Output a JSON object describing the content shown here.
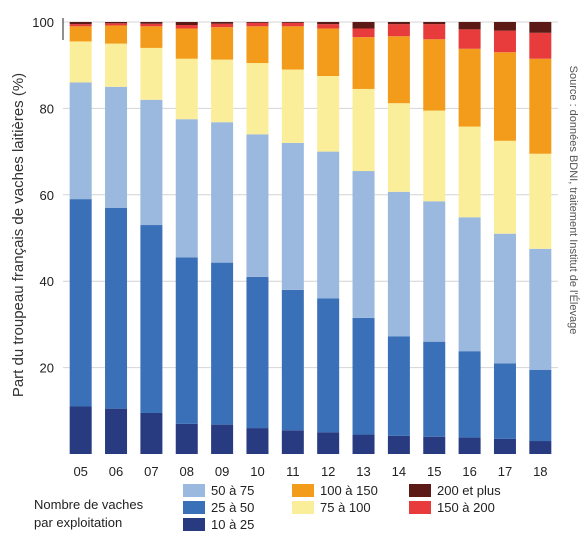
{
  "chart_data": {
    "type": "bar",
    "stacked": true,
    "ylabel": "Part du troupeau français de vaches laitières (%)",
    "source": "Source : données BDNI, traitement Institut de l'Élevage",
    "ylim": [
      0,
      100
    ],
    "yticks": [
      "100",
      "80",
      "60",
      "40",
      "20"
    ],
    "categories": [
      "05",
      "06",
      "07",
      "08",
      "09",
      "10",
      "11",
      "12",
      "13",
      "14",
      "15",
      "16",
      "17",
      "18"
    ],
    "legend_title": [
      "Nombre de vaches",
      "par exploitation"
    ],
    "legend_order": [
      2,
      1,
      0,
      4,
      3,
      6,
      5
    ],
    "series": [
      {
        "name": "10 à 25",
        "color": "#283a80",
        "values": [
          11,
          10.5,
          9.5,
          7,
          6.8,
          6,
          5.5,
          5,
          4.5,
          4.2,
          4,
          3.8,
          3.5,
          3
        ]
      },
      {
        "name": "25 à 50",
        "color": "#3a70b8",
        "values": [
          48,
          46.5,
          43.5,
          38.5,
          37.5,
          35,
          32.5,
          31,
          27,
          23,
          22,
          20,
          17.5,
          16.5
        ]
      },
      {
        "name": "50 à 75",
        "color": "#9bb8de",
        "values": [
          27,
          28,
          29,
          32,
          32.5,
          33,
          34,
          34,
          34,
          33.5,
          32.5,
          31,
          30,
          28
        ]
      },
      {
        "name": "75 à 100",
        "color": "#fbee9a",
        "values": [
          9.5,
          10,
          12,
          14,
          14.5,
          16.5,
          17,
          17.5,
          19,
          20.5,
          21,
          21,
          21.5,
          22
        ]
      },
      {
        "name": "100 à 150",
        "color": "#f39c1c",
        "values": [
          3.5,
          4.2,
          5,
          7,
          7.5,
          8.5,
          10,
          11,
          12,
          15.5,
          16.5,
          18,
          20.5,
          22
        ]
      },
      {
        "name": "150 à 200",
        "color": "#e83c3c",
        "values": [
          0.5,
          0.5,
          0.6,
          0.8,
          0.8,
          0.8,
          0.8,
          1,
          2,
          2.8,
          3.5,
          4.5,
          5,
          6
        ]
      },
      {
        "name": "200 et plus",
        "color": "#5c1a16",
        "values": [
          0.5,
          0.3,
          0.4,
          0.7,
          0.4,
          0.2,
          0.2,
          0.5,
          1.5,
          0.5,
          0.5,
          1.7,
          2,
          2.5
        ]
      }
    ]
  }
}
